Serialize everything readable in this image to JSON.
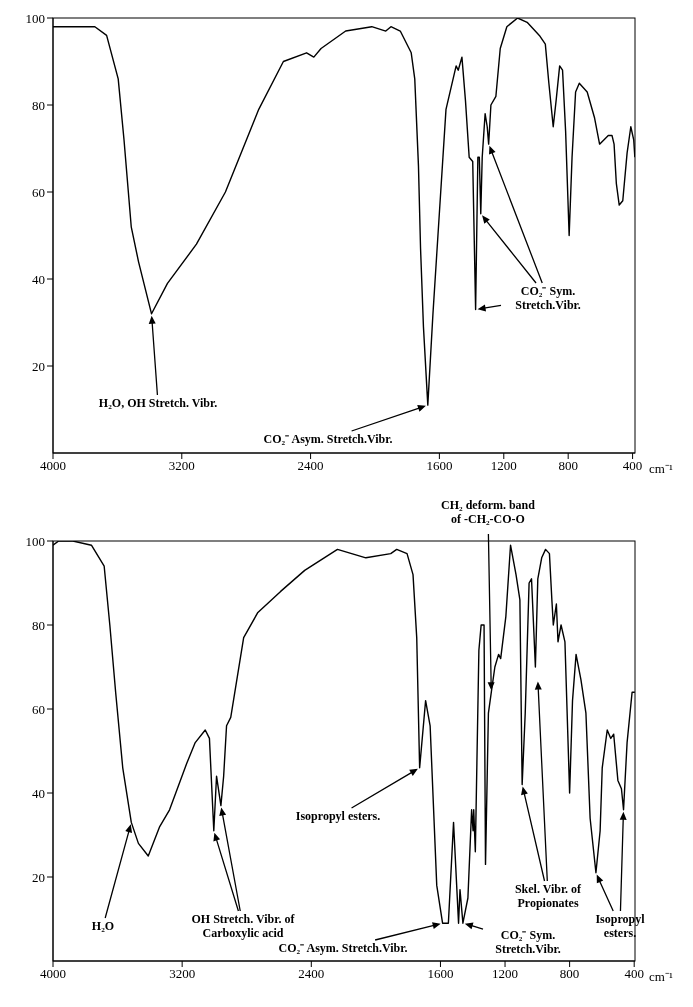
{
  "chart_data": [
    {
      "type": "line",
      "x": [
        4000,
        3982,
        3740,
        3667,
        3595,
        3559,
        3514,
        3469,
        3388,
        3289,
        3109,
        2929,
        2722,
        2569,
        2425,
        2380,
        2335,
        2182,
        2020,
        1933,
        1901,
        1843,
        1775,
        1753,
        1730,
        1717,
        1699,
        1672,
        1640,
        1609,
        1559,
        1496,
        1483,
        1460,
        1438,
        1415,
        1393,
        1375,
        1361,
        1352,
        1343,
        1334,
        1316,
        1303,
        1294,
        1280,
        1249,
        1222,
        1181,
        1114,
        1055,
        979,
        942,
        920,
        893,
        875,
        853,
        835,
        816,
        794,
        776,
        754,
        731,
        682,
        636,
        605,
        551,
        528,
        515,
        501,
        483,
        461,
        434,
        411,
        393,
        386
      ],
      "series": [
        {
          "color": "#000000",
          "values": [
            98,
            98,
            98,
            96,
            86,
            72,
            52,
            44,
            32,
            39,
            48,
            60,
            79,
            90,
            92,
            91,
            93,
            97,
            98,
            97,
            98,
            97,
            92,
            86,
            66,
            47,
            29,
            11,
            32,
            50,
            79,
            89,
            88,
            91,
            81,
            68,
            67,
            33,
            68,
            68,
            55,
            68,
            78,
            75,
            71,
            80,
            82,
            93,
            98,
            100,
            99,
            96,
            94,
            85,
            75,
            81,
            89,
            88,
            74,
            50,
            68,
            83,
            85,
            83,
            77,
            71,
            73,
            73,
            71,
            62,
            57,
            58,
            69,
            75,
            72,
            68
          ]
        }
      ],
      "xlim": [
        4000,
        385
      ],
      "xticks": [
        4000,
        3200,
        2400,
        1600,
        1200,
        800,
        400
      ],
      "xlabel": "cm⁻¹",
      "ylim": [
        0,
        100
      ],
      "yticks": [
        20,
        40,
        60,
        80,
        100
      ],
      "annotations": [
        "H₂O, OH Stretch. Vibr.",
        "CO₂⁻ Asym. Stretch.Vibr.",
        "CO₂⁻ Sym. Stretch.Vibr."
      ]
    },
    {
      "type": "line",
      "x": [
        4000,
        3965,
        3877,
        3762,
        3683,
        3648,
        3612,
        3568,
        3515,
        3471,
        3410,
        3339,
        3278,
        3172,
        3119,
        3057,
        3031,
        3004,
        2987,
        2960,
        2943,
        2925,
        2899,
        2819,
        2731,
        2590,
        2441,
        2238,
        2062,
        1908,
        1871,
        1807,
        1770,
        1747,
        1729,
        1692,
        1664,
        1623,
        1587,
        1551,
        1519,
        1488,
        1479,
        1461,
        1430,
        1407,
        1398,
        1394,
        1384,
        1362,
        1348,
        1330,
        1321,
        1303,
        1285,
        1263,
        1240,
        1227,
        1195,
        1166,
        1132,
        1108,
        1094,
        1075,
        1051,
        1036,
        1012,
        997,
        973,
        949,
        925,
        910,
        901,
        882,
        872,
        853,
        829,
        800,
        782,
        760,
        730,
        699,
        673,
        637,
        611,
        598,
        567,
        545,
        527,
        501,
        479,
        466,
        444,
        413,
        396
      ],
      "series": [
        {
          "color": "#000000",
          "values": [
            99,
            100,
            100,
            99,
            94,
            80,
            64,
            46,
            33,
            28,
            25,
            32,
            36,
            47,
            52,
            55,
            53,
            31,
            44,
            37,
            44,
            56,
            58,
            77,
            83,
            88,
            93,
            98,
            96,
            97,
            98,
            97,
            92,
            77,
            46,
            62,
            56,
            18,
            9,
            9,
            33,
            9,
            17,
            9,
            15,
            36,
            31,
            36,
            26,
            74,
            80,
            80,
            23,
            59,
            64,
            70,
            73,
            72,
            82,
            99,
            92,
            86,
            42,
            59,
            90,
            91,
            70,
            91,
            96,
            98,
            97,
            86,
            80,
            85,
            76,
            80,
            76,
            40,
            62,
            73,
            67,
            59,
            34,
            21,
            31,
            46,
            55,
            53,
            54,
            43,
            41,
            36,
            52,
            64,
            64
          ]
        }
      ],
      "xlim": [
        4000,
        395
      ],
      "xticks": [
        4000,
        3200,
        2400,
        1600,
        1200,
        800,
        400
      ],
      "xlabel": "cm⁻¹",
      "ylim": [
        0,
        100
      ],
      "yticks": [
        20,
        40,
        60,
        80,
        100
      ],
      "annotations": [
        "H₂O",
        "OH Stretch. Vibr. of Carboxylic acid",
        "Isopropyl esters.",
        "CH₂ deform. band of -CH₂-CO-O",
        "CO₂⁻ Asym. Stretch.Vibr.",
        "CO₂⁻ Sym. Stretch.Vibr.",
        "Skel. Vibr. of Propionates",
        "Isopropyl esters."
      ]
    }
  ]
}
